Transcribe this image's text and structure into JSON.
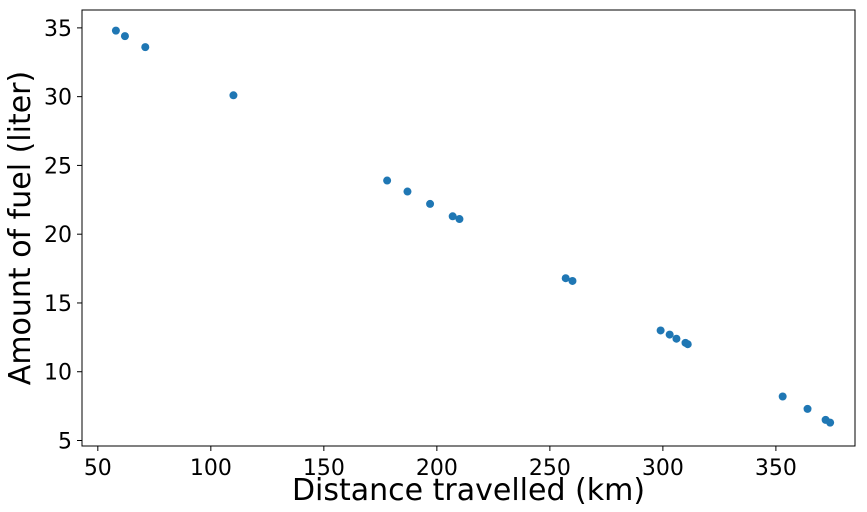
{
  "chart_data": {
    "type": "scatter",
    "title": "",
    "xlabel": "Distance travelled (km)",
    "ylabel": "Amount of fuel (liter)",
    "xlim": [
      43,
      385
    ],
    "ylim": [
      4.6,
      36.3
    ],
    "xticks": [
      50,
      100,
      150,
      200,
      250,
      300,
      350
    ],
    "yticks": [
      5,
      10,
      15,
      20,
      25,
      30,
      35
    ],
    "grid": false,
    "legend": "none",
    "marker_color": "#1f77b4",
    "series": [
      {
        "points": [
          [
            58,
            34.8
          ],
          [
            62,
            34.4
          ],
          [
            71,
            33.6
          ],
          [
            110,
            30.1
          ],
          [
            178,
            23.9
          ],
          [
            187,
            23.1
          ],
          [
            197,
            22.2
          ],
          [
            207,
            21.3
          ],
          [
            210,
            21.1
          ],
          [
            257,
            16.8
          ],
          [
            260,
            16.6
          ],
          [
            299,
            13.0
          ],
          [
            303,
            12.7
          ],
          [
            306,
            12.4
          ],
          [
            310,
            12.1
          ],
          [
            311,
            12.0
          ],
          [
            353,
            8.2
          ],
          [
            364,
            7.3
          ],
          [
            372,
            6.5
          ],
          [
            374,
            6.3
          ]
        ]
      }
    ]
  }
}
